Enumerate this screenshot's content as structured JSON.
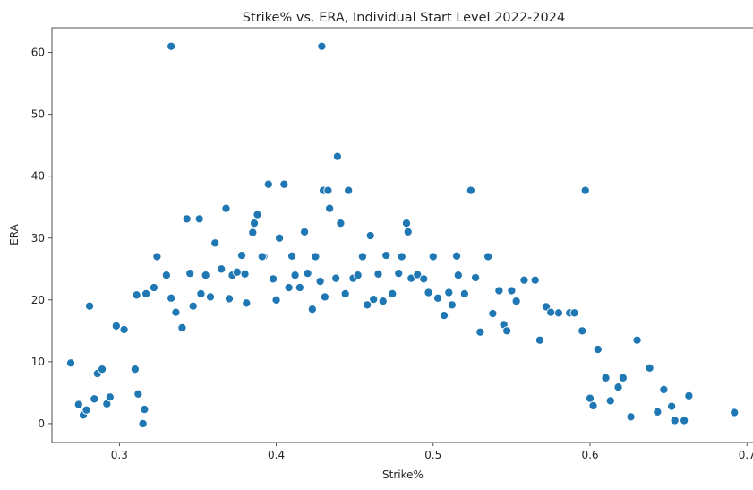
{
  "chart_data": {
    "type": "scatter",
    "title": "Strike% vs. ERA, Individual Start Level 2022-2024",
    "xlabel": "Strike%",
    "ylabel": "ERA",
    "xlim": [
      0.257,
      0.705
    ],
    "ylim": [
      -3.05,
      64.0
    ],
    "xticks": [
      {
        "value": 0.3,
        "label": "0.3"
      },
      {
        "value": 0.4,
        "label": "0.4"
      },
      {
        "value": 0.5,
        "label": "0.5"
      },
      {
        "value": 0.6,
        "label": "0.6"
      },
      {
        "value": 0.7,
        "label": "0.7"
      }
    ],
    "yticks": [
      {
        "value": 0,
        "label": "0"
      },
      {
        "value": 10,
        "label": "10"
      },
      {
        "value": 20,
        "label": "20"
      },
      {
        "value": 30,
        "label": "30"
      },
      {
        "value": 40,
        "label": "40"
      },
      {
        "value": 50,
        "label": "50"
      },
      {
        "value": 60,
        "label": "60"
      }
    ],
    "grid": false,
    "marker_color": "#1f77b4",
    "marker_edge_color": "#ffffff",
    "series": [
      {
        "x": [
          0.333,
          0.429,
          0.439,
          0.395,
          0.405,
          0.43,
          0.433,
          0.446,
          0.524,
          0.597,
          0.368,
          0.343,
          0.351,
          0.388,
          0.434,
          0.441,
          0.386,
          0.483,
          0.385,
          0.402,
          0.418,
          0.46,
          0.484,
          0.361,
          0.378,
          0.392,
          0.41,
          0.425,
          0.455,
          0.47,
          0.5,
          0.515,
          0.535,
          0.324,
          0.33,
          0.345,
          0.355,
          0.372,
          0.38,
          0.398,
          0.412,
          0.42,
          0.428,
          0.438,
          0.449,
          0.452,
          0.465,
          0.478,
          0.486,
          0.49,
          0.494,
          0.51,
          0.516,
          0.527,
          0.542,
          0.553,
          0.558,
          0.572,
          0.58,
          0.587,
          0.281,
          0.311,
          0.317,
          0.322,
          0.298,
          0.303,
          0.269,
          0.274,
          0.277,
          0.279,
          0.284,
          0.286,
          0.289,
          0.292,
          0.294,
          0.31,
          0.312,
          0.315,
          0.316,
          0.6,
          0.602,
          0.61,
          0.613,
          0.618,
          0.621,
          0.626,
          0.63,
          0.638,
          0.643,
          0.647,
          0.652,
          0.654,
          0.66,
          0.663,
          0.692,
          0.545,
          0.55,
          0.565,
          0.568,
          0.575,
          0.59,
          0.595,
          0.605,
          0.333,
          0.336,
          0.34,
          0.347,
          0.352,
          0.358,
          0.365,
          0.37,
          0.375,
          0.381,
          0.391,
          0.4,
          0.408,
          0.415,
          0.423,
          0.431,
          0.444,
          0.458,
          0.462,
          0.468,
          0.474,
          0.48,
          0.497,
          0.503,
          0.507,
          0.512,
          0.52,
          0.53,
          0.538,
          0.547
        ],
        "y": [
          61,
          61,
          43.2,
          38.7,
          38.7,
          37.7,
          37.7,
          37.7,
          37.7,
          37.7,
          34.8,
          33.1,
          33.1,
          33.8,
          34.8,
          32.4,
          32.4,
          32.4,
          30.9,
          30,
          31,
          30.4,
          31,
          29.2,
          27.2,
          27,
          27.1,
          27,
          27,
          27.2,
          27,
          27.1,
          27,
          27,
          24,
          24.3,
          24,
          24,
          24.2,
          23.4,
          24,
          24.3,
          23,
          23.5,
          23.5,
          24,
          24.2,
          24.3,
          23.5,
          24.1,
          23.4,
          21.2,
          24,
          23.6,
          21.5,
          19.8,
          23.2,
          18.9,
          17.9,
          17.9,
          19,
          20.8,
          21,
          22,
          15.8,
          15.2,
          9.8,
          3.1,
          1.4,
          2.2,
          4,
          8.1,
          8.8,
          3.2,
          4.3,
          8.8,
          4.8,
          0,
          2.3,
          4.1,
          2.9,
          7.4,
          3.7,
          5.9,
          7.4,
          1.1,
          13.5,
          9,
          1.9,
          5.5,
          2.8,
          0.5,
          0.5,
          4.5,
          1.8,
          16,
          21.5,
          23.2,
          13.5,
          18,
          17.9,
          15,
          12,
          20.3,
          18,
          15.5,
          19,
          21,
          20.5,
          25,
          20.2,
          24.5,
          19.5,
          27,
          20,
          22,
          22,
          18.5,
          20.5,
          21,
          19.2,
          20.1,
          19.8,
          21,
          27,
          21.2,
          20.3,
          17.5,
          19.2,
          21,
          14.8,
          17.8,
          15
        ]
      }
    ]
  }
}
